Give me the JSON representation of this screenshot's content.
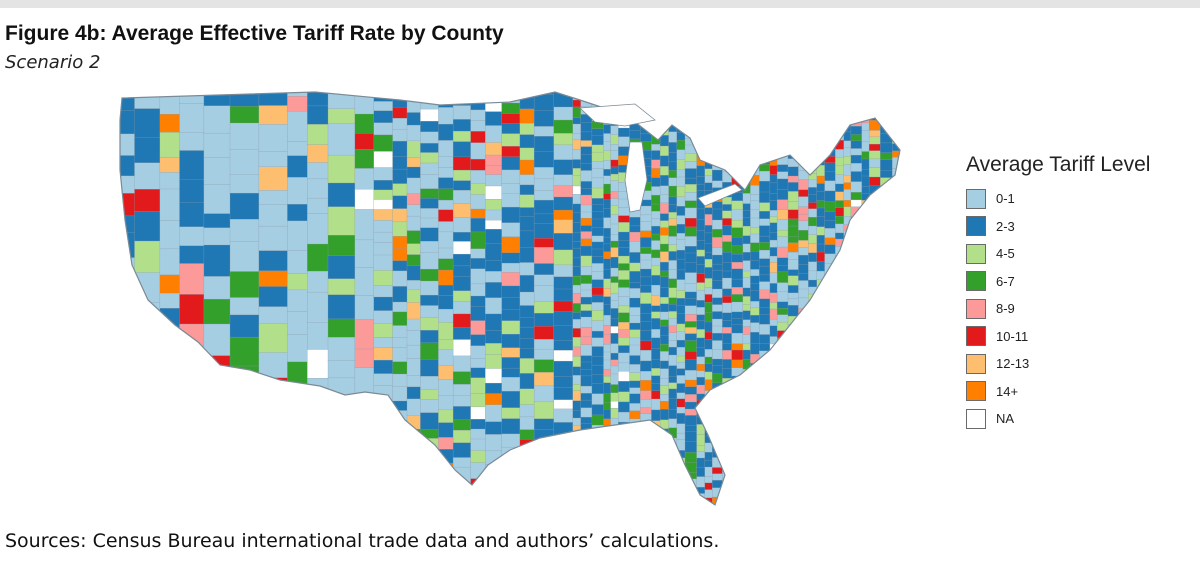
{
  "figure": {
    "title": "Figure 4b: Average Effective Tariff Rate by County",
    "subtitle": "Scenario 2",
    "sources": "Sources: Census Bureau international trade data and authors’ calculations."
  },
  "legend": {
    "title": "Average Tariff Level",
    "items": [
      {
        "label": "0-1",
        "color": "#a6cee3"
      },
      {
        "label": "2-3",
        "color": "#1f78b4"
      },
      {
        "label": "4-5",
        "color": "#b2df8a"
      },
      {
        "label": "6-7",
        "color": "#33a02c"
      },
      {
        "label": "8-9",
        "color": "#fb9a99"
      },
      {
        "label": "10-11",
        "color": "#e31a1c"
      },
      {
        "label": "12-13",
        "color": "#fdbf6f"
      },
      {
        "label": "14+",
        "color": "#ff7f00"
      },
      {
        "label": "NA",
        "color": "#ffffff"
      }
    ]
  }
}
